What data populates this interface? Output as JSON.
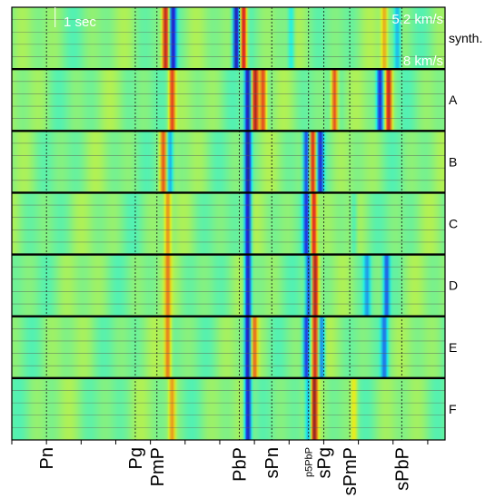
{
  "chart_data": {
    "type": "heatmap",
    "title": "",
    "xlabel": "",
    "ylabel": "",
    "annotations": {
      "scale": "1 sec",
      "velocity_top": "5.2 km/s",
      "velocity_bottom": "8 km/s"
    },
    "panels": [
      "synth.",
      "A",
      "B",
      "C",
      "D",
      "E",
      "F"
    ],
    "traces_per_panel": 5,
    "phases": [
      {
        "name": "Pn",
        "t": 0.08
      },
      {
        "name": "Pg",
        "t": 0.285
      },
      {
        "name": "PmP",
        "t": 0.335
      },
      {
        "name": "PbP",
        "t": 0.525
      },
      {
        "name": "sPn",
        "t": 0.6
      },
      {
        "name": "p5PbP",
        "t": 0.685,
        "small": true
      },
      {
        "name": "sPg",
        "t": 0.72
      },
      {
        "name": "sPmP",
        "t": 0.78
      },
      {
        "name": "sPbP",
        "t": 0.9
      }
    ],
    "ticks": [
      0.0,
      0.08,
      0.16,
      0.24,
      0.32,
      0.4,
      0.48,
      0.56,
      0.64,
      0.72,
      0.8,
      0.88,
      0.96
    ],
    "colormap": "jet",
    "arrivals": {
      "synth.": [
        {
          "t": 0.355,
          "amp": 0.9
        },
        {
          "t": 0.372,
          "amp": -0.8
        },
        {
          "t": 0.518,
          "amp": -0.9
        },
        {
          "t": 0.535,
          "amp": 0.95
        },
        {
          "t": 0.645,
          "amp": -0.3
        },
        {
          "t": 0.86,
          "amp": 0.45
        },
        {
          "t": 0.89,
          "amp": -0.4
        }
      ],
      "A": [
        {
          "t": 0.37,
          "amp": 0.7
        },
        {
          "t": 0.545,
          "amp": -0.95
        },
        {
          "t": 0.562,
          "amp": 0.9
        },
        {
          "t": 0.58,
          "amp": 0.7
        },
        {
          "t": 0.745,
          "amp": 0.75
        },
        {
          "t": 0.85,
          "amp": -0.8
        },
        {
          "t": 0.87,
          "amp": 0.8
        }
      ],
      "B": [
        {
          "t": 0.35,
          "amp": 0.6
        },
        {
          "t": 0.365,
          "amp": -0.5
        },
        {
          "t": 0.545,
          "amp": -0.95
        },
        {
          "t": 0.68,
          "amp": -0.7
        },
        {
          "t": 0.695,
          "amp": 0.85
        },
        {
          "t": 0.712,
          "amp": -0.7
        }
      ],
      "C": [
        {
          "t": 0.36,
          "amp": 0.5
        },
        {
          "t": 0.545,
          "amp": -0.95
        },
        {
          "t": 0.68,
          "amp": -0.65
        },
        {
          "t": 0.697,
          "amp": 0.85
        },
        {
          "t": 0.79,
          "amp": -0.2
        }
      ],
      "D": [
        {
          "t": 0.36,
          "amp": 0.45
        },
        {
          "t": 0.545,
          "amp": -0.95
        },
        {
          "t": 0.685,
          "amp": -0.7
        },
        {
          "t": 0.7,
          "amp": 0.9
        },
        {
          "t": 0.82,
          "amp": -0.4
        },
        {
          "t": 0.865,
          "amp": -0.6
        }
      ],
      "E": [
        {
          "t": 0.36,
          "amp": 0.55
        },
        {
          "t": 0.545,
          "amp": -0.95
        },
        {
          "t": 0.56,
          "amp": 0.55
        },
        {
          "t": 0.68,
          "amp": -0.7
        },
        {
          "t": 0.7,
          "amp": 0.85
        },
        {
          "t": 0.715,
          "amp": -0.6
        },
        {
          "t": 0.86,
          "amp": -0.5
        }
      ],
      "F": [
        {
          "t": 0.37,
          "amp": 0.45
        },
        {
          "t": 0.545,
          "amp": -0.95
        },
        {
          "t": 0.685,
          "amp": -0.5
        },
        {
          "t": 0.698,
          "amp": 0.9
        },
        {
          "t": 0.79,
          "amp": 0.3
        }
      ]
    }
  }
}
